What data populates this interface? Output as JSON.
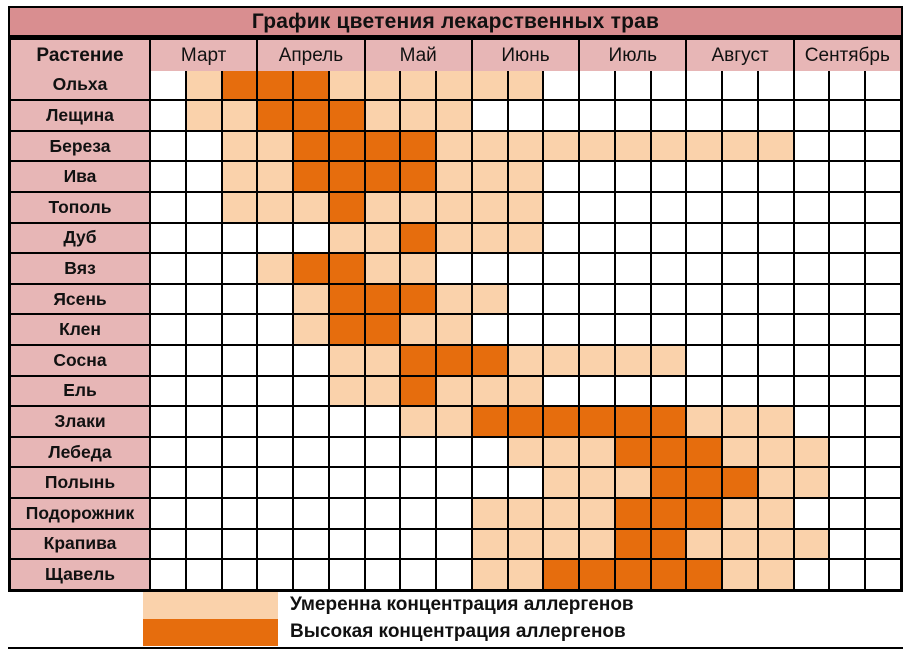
{
  "title": "График цветения лекарственных трав",
  "table": {
    "plant_column_header": "Растение",
    "months": [
      "Март",
      "Апрель",
      "Май",
      "Июнь",
      "Июль",
      "Август",
      "Сентябрь"
    ],
    "cells_per_month": 3
  },
  "legend": {
    "moderate_label": "Умеренна концентрация аллергенов",
    "high_label": "Высокая концентрация аллергенов"
  },
  "colors": {
    "title_bar": "#d98e90",
    "header_pink": "#e7b6b6",
    "moderate": "#fad2ab",
    "high": "#e66d0d",
    "empty": "#ffffff",
    "grid_line": "#000000"
  },
  "chart_data": {
    "type": "heatmap",
    "title": "График цветения лекарственных трав",
    "xlabel": "",
    "ylabel": "Растение",
    "x_categories_months": [
      "Март",
      "Апрель",
      "Май",
      "Июнь",
      "Июль",
      "Август",
      "Сентябрь"
    ],
    "subcolumns_per_month": 3,
    "value_levels": {
      "0": "нет цветения",
      "1": "Умеренна концентрация аллергенов",
      "2": "Высокая концентрация аллергенов"
    },
    "legend_position": "bottom",
    "grid": true,
    "rows": [
      {
        "plant": "Ольха",
        "values": [
          0,
          1,
          2,
          2,
          2,
          1,
          1,
          1,
          1,
          1,
          1,
          0,
          0,
          0,
          0,
          0,
          0,
          0,
          0,
          0,
          0
        ]
      },
      {
        "plant": "Лещина",
        "values": [
          0,
          1,
          1,
          2,
          2,
          2,
          1,
          1,
          1,
          0,
          0,
          0,
          0,
          0,
          0,
          0,
          0,
          0,
          0,
          0,
          0
        ]
      },
      {
        "plant": "Береза",
        "values": [
          0,
          0,
          1,
          1,
          2,
          2,
          2,
          2,
          1,
          1,
          1,
          1,
          1,
          1,
          1,
          1,
          1,
          1,
          0,
          0,
          0
        ]
      },
      {
        "plant": "Ива",
        "values": [
          0,
          0,
          1,
          1,
          2,
          2,
          2,
          2,
          1,
          1,
          1,
          0,
          0,
          0,
          0,
          0,
          0,
          0,
          0,
          0,
          0
        ]
      },
      {
        "plant": "Тополь",
        "values": [
          0,
          0,
          1,
          1,
          1,
          2,
          1,
          1,
          1,
          1,
          1,
          0,
          0,
          0,
          0,
          0,
          0,
          0,
          0,
          0,
          0
        ]
      },
      {
        "plant": "Дуб",
        "values": [
          0,
          0,
          0,
          0,
          0,
          1,
          1,
          2,
          1,
          1,
          1,
          0,
          0,
          0,
          0,
          0,
          0,
          0,
          0,
          0,
          0
        ]
      },
      {
        "plant": "Вяз",
        "values": [
          0,
          0,
          0,
          1,
          2,
          2,
          1,
          1,
          0,
          0,
          0,
          0,
          0,
          0,
          0,
          0,
          0,
          0,
          0,
          0,
          0
        ]
      },
      {
        "plant": "Ясень",
        "values": [
          0,
          0,
          0,
          0,
          1,
          2,
          2,
          2,
          1,
          1,
          0,
          0,
          0,
          0,
          0,
          0,
          0,
          0,
          0,
          0,
          0
        ]
      },
      {
        "plant": "Клен",
        "values": [
          0,
          0,
          0,
          0,
          1,
          2,
          2,
          1,
          1,
          0,
          0,
          0,
          0,
          0,
          0,
          0,
          0,
          0,
          0,
          0,
          0
        ]
      },
      {
        "plant": "Сосна",
        "values": [
          0,
          0,
          0,
          0,
          0,
          1,
          1,
          2,
          2,
          2,
          1,
          1,
          1,
          1,
          1,
          0,
          0,
          0,
          0,
          0,
          0
        ]
      },
      {
        "plant": "Ель",
        "values": [
          0,
          0,
          0,
          0,
          0,
          1,
          1,
          2,
          1,
          1,
          1,
          0,
          0,
          0,
          0,
          0,
          0,
          0,
          0,
          0,
          0
        ]
      },
      {
        "plant": "Злаки",
        "values": [
          0,
          0,
          0,
          0,
          0,
          0,
          0,
          1,
          1,
          2,
          2,
          2,
          2,
          2,
          2,
          1,
          1,
          1,
          0,
          0,
          0
        ]
      },
      {
        "plant": "Лебеда",
        "values": [
          0,
          0,
          0,
          0,
          0,
          0,
          0,
          0,
          0,
          0,
          1,
          1,
          1,
          2,
          2,
          2,
          1,
          1,
          1,
          0,
          0
        ]
      },
      {
        "plant": "Полынь",
        "values": [
          0,
          0,
          0,
          0,
          0,
          0,
          0,
          0,
          0,
          0,
          0,
          1,
          1,
          1,
          2,
          2,
          2,
          1,
          1,
          0,
          0
        ]
      },
      {
        "plant": "Подорожник",
        "values": [
          0,
          0,
          0,
          0,
          0,
          0,
          0,
          0,
          0,
          1,
          1,
          1,
          1,
          2,
          2,
          2,
          1,
          1,
          0,
          0,
          0
        ]
      },
      {
        "plant": "Крапива",
        "values": [
          0,
          0,
          0,
          0,
          0,
          0,
          0,
          0,
          0,
          1,
          1,
          1,
          1,
          2,
          2,
          1,
          1,
          1,
          1,
          0,
          0
        ]
      },
      {
        "plant": "Щавель",
        "values": [
          0,
          0,
          0,
          0,
          0,
          0,
          0,
          0,
          0,
          1,
          1,
          2,
          2,
          2,
          2,
          2,
          1,
          1,
          0,
          0,
          0
        ]
      }
    ]
  }
}
